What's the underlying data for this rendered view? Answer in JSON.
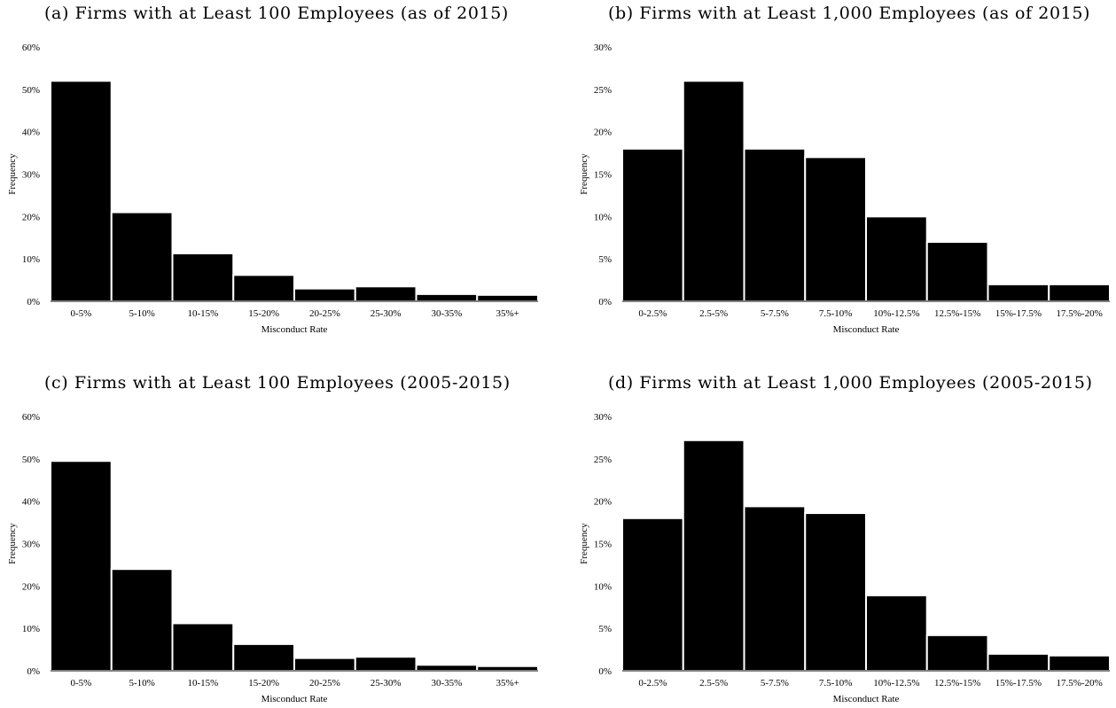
{
  "chart_data": [
    {
      "type": "bar",
      "title": "(a) Firms with at Least 100 Employees (as of 2015)",
      "xlabel": "Misconduct Rate",
      "ylabel": "Frequency",
      "categories": [
        "0-5%",
        "5-10%",
        "10-15%",
        "15-20%",
        "20-25%",
        "25-30%",
        "30-35%",
        "35%+"
      ],
      "values": [
        52,
        21,
        11.3,
        6.2,
        3,
        3.5,
        1.7,
        1.5
      ],
      "ylim": [
        0,
        60
      ],
      "yticks": [
        "0%",
        "10%",
        "20%",
        "30%",
        "40%",
        "50%",
        "60%"
      ],
      "grid": false
    },
    {
      "type": "bar",
      "title": "(b) Firms with at Least 1,000 Employees (as of 2015)",
      "xlabel": "Misconduct Rate",
      "ylabel": "Frequency",
      "categories": [
        "0-2.5%",
        "2.5-5%",
        "5-7.5%",
        "7.5-10%",
        "10%-12.5%",
        "12.5%-15%",
        "15%-17.5%",
        "17.5%-20%"
      ],
      "values": [
        18,
        26,
        18,
        17,
        10,
        7,
        2,
        2
      ],
      "ylim": [
        0,
        30
      ],
      "yticks": [
        "0%",
        "5%",
        "10%",
        "15%",
        "20%",
        "25%",
        "30%"
      ],
      "grid": false
    },
    {
      "type": "bar",
      "title": "(c) Firms with at Least 100 Employees (2005-2015)",
      "xlabel": "Misconduct Rate",
      "ylabel": "Frequency",
      "categories": [
        "0-5%",
        "5-10%",
        "10-15%",
        "15-20%",
        "20-25%",
        "25-30%",
        "30-35%",
        "35%+"
      ],
      "values": [
        49.5,
        24,
        11.2,
        6.3,
        3,
        3.3,
        1.4,
        1.1
      ],
      "ylim": [
        0,
        60
      ],
      "yticks": [
        "0%",
        "10%",
        "20%",
        "30%",
        "40%",
        "50%",
        "60%"
      ],
      "grid": false
    },
    {
      "type": "bar",
      "title": "(d) Firms with at Least 1,000 Employees (2005-2015)",
      "xlabel": "Misconduct Rate",
      "ylabel": "Frequency",
      "categories": [
        "0-2.5%",
        "2.5-5%",
        "5-7.5%",
        "7.5-10%",
        "10%-12.5%",
        "12.5%-15%",
        "15%-17.5%",
        "17.5%-20%"
      ],
      "values": [
        18,
        27.2,
        19.4,
        18.6,
        8.9,
        4.2,
        2,
        1.8
      ],
      "ylim": [
        0,
        30
      ],
      "yticks": [
        "0%",
        "5%",
        "10%",
        "15%",
        "20%",
        "25%",
        "30%"
      ],
      "grid": false
    }
  ],
  "colors": {
    "bar": "#000000",
    "bar_edge": "#ffffff",
    "axis": "#000000",
    "background": "#ffffff"
  }
}
